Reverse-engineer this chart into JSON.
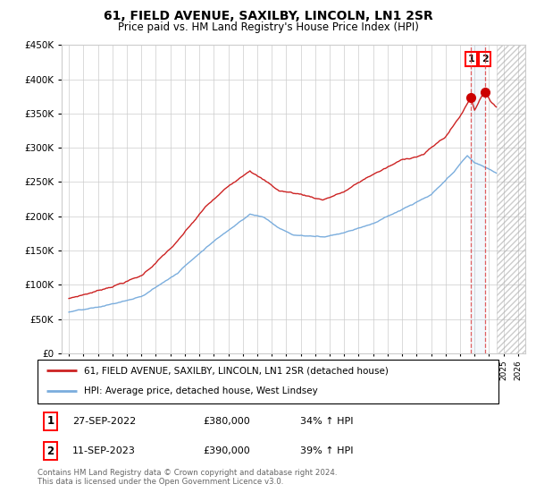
{
  "title": "61, FIELD AVENUE, SAXILBY, LINCOLN, LN1 2SR",
  "subtitle": "Price paid vs. HM Land Registry's House Price Index (HPI)",
  "legend_line1": "61, FIELD AVENUE, SAXILBY, LINCOLN, LN1 2SR (detached house)",
  "legend_line2": "HPI: Average price, detached house, West Lindsey",
  "transaction1_date": "27-SEP-2022",
  "transaction1_price": "£380,000",
  "transaction1_hpi": "34% ↑ HPI",
  "transaction2_date": "11-SEP-2023",
  "transaction2_price": "£390,000",
  "transaction2_hpi": "39% ↑ HPI",
  "footer": "Contains HM Land Registry data © Crown copyright and database right 2024.\nThis data is licensed under the Open Government Licence v3.0.",
  "hpi_color": "#7aaddd",
  "price_color": "#cc2222",
  "marker_color": "#cc0000",
  "transaction1_x": 2022.75,
  "transaction2_x": 2023.7,
  "future_start": 2024.5,
  "xlim_start": 1994.5,
  "xlim_end": 2026.5,
  "ylim_min": 0,
  "ylim_max": 450000
}
